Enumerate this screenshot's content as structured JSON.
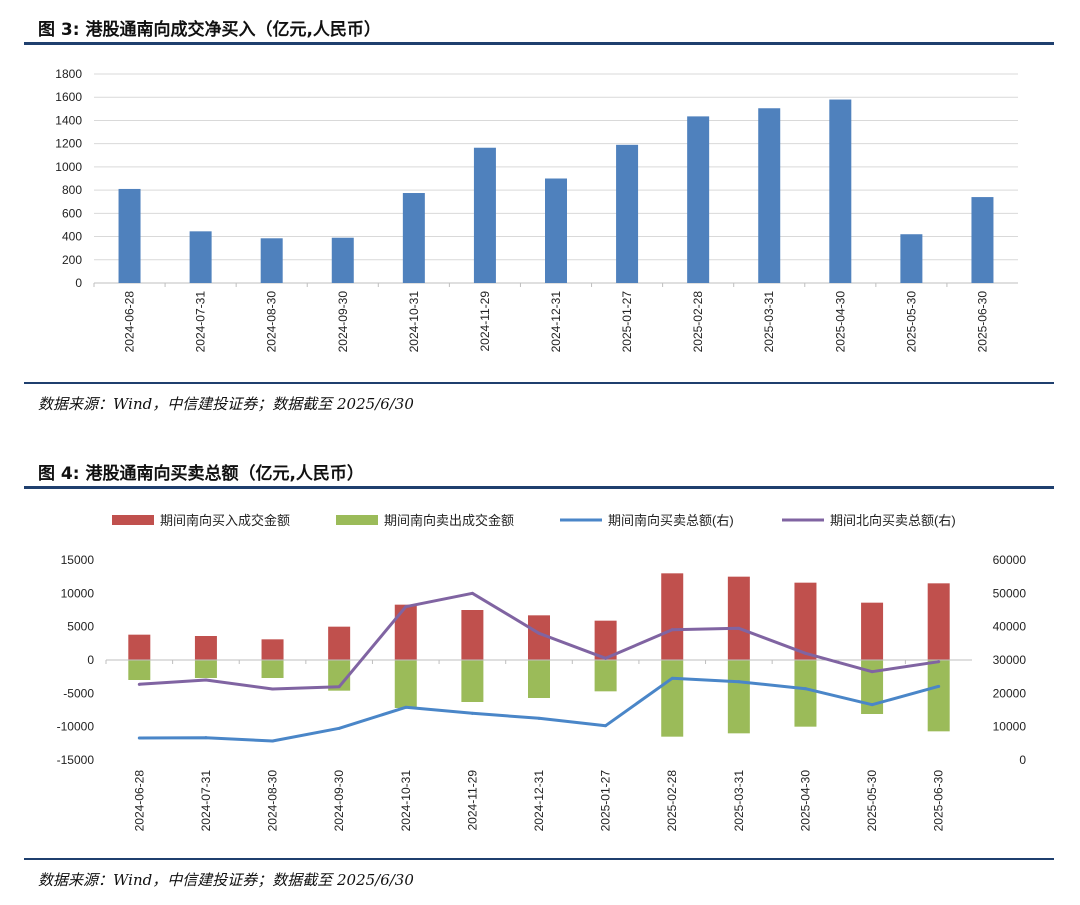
{
  "figure1": {
    "title": "图 3: 港股通南向成交净买入（亿元,人民币）",
    "source": "数据来源：Wind，中信建投证券；数据截至 2025/6/30"
  },
  "figure2": {
    "title": "图 4: 港股通南向买卖总额（亿元,人民币）",
    "source": "数据来源：Wind，中信建投证券；数据截至 2025/6/30"
  },
  "chart_data": [
    {
      "type": "bar",
      "title": "港股通南向成交净买入（亿元,人民币）",
      "categories": [
        "2024-06-28",
        "2024-07-31",
        "2024-08-30",
        "2024-09-30",
        "2024-10-31",
        "2024-11-29",
        "2024-12-31",
        "2025-01-27",
        "2025-02-28",
        "2025-03-31",
        "2025-04-30",
        "2025-05-30",
        "2025-06-30"
      ],
      "values": [
        810,
        445,
        385,
        390,
        775,
        1165,
        900,
        1190,
        1435,
        1505,
        1580,
        420,
        740
      ],
      "ylim": [
        0,
        1800
      ],
      "yticks": [
        "0",
        "200",
        "400",
        "600",
        "800",
        "1000",
        "1200",
        "1400",
        "1600",
        "1800"
      ],
      "grid": true,
      "color": "#4f81bd"
    },
    {
      "type": "bar+line",
      "title": "港股通南向买卖总额（亿元,人民币）",
      "categories": [
        "2024-06-28",
        "2024-07-31",
        "2024-08-30",
        "2024-09-30",
        "2024-10-31",
        "2024-11-29",
        "2024-12-31",
        "2025-01-27",
        "2025-02-28",
        "2025-03-31",
        "2025-04-30",
        "2025-05-30",
        "2025-06-30"
      ],
      "series": [
        {
          "name": "期间南向买入成交金额",
          "type": "bar",
          "axis": "left",
          "color": "#c0504d",
          "values": [
            3800,
            3600,
            3100,
            5000,
            8300,
            7500,
            6700,
            5900,
            13000,
            12500,
            11600,
            8600,
            11500
          ]
        },
        {
          "name": "期间南向卖出成交金额",
          "type": "bar",
          "axis": "left",
          "color": "#9bbb59",
          "values": [
            -3000,
            -2700,
            -2700,
            -4600,
            -7200,
            -6300,
            -5700,
            -4700,
            -11500,
            -11000,
            -10000,
            -8100,
            -10700
          ]
        },
        {
          "name": "期间南向买卖总额(右)",
          "type": "line",
          "axis": "right",
          "color": "#4a86c8",
          "values": [
            6600,
            6700,
            5700,
            9500,
            15800,
            14000,
            12500,
            10300,
            24500,
            23500,
            21400,
            16600,
            22100
          ]
        },
        {
          "name": "期间北向买卖总额(右)",
          "type": "line",
          "axis": "right",
          "color": "#8064a2",
          "values": [
            22700,
            24000,
            21300,
            22000,
            46000,
            50000,
            38000,
            30500,
            39100,
            39500,
            32000,
            26500,
            29500
          ]
        }
      ],
      "ylim_left": [
        -15000,
        15000
      ],
      "yticks_left": [
        "-15000",
        "-10000",
        "-5000",
        "0",
        "5000",
        "10000",
        "15000"
      ],
      "ylim_right": [
        0,
        60000
      ],
      "yticks_right": [
        "0",
        "10000",
        "20000",
        "30000",
        "40000",
        "50000",
        "60000"
      ],
      "legend_position": "top"
    }
  ]
}
